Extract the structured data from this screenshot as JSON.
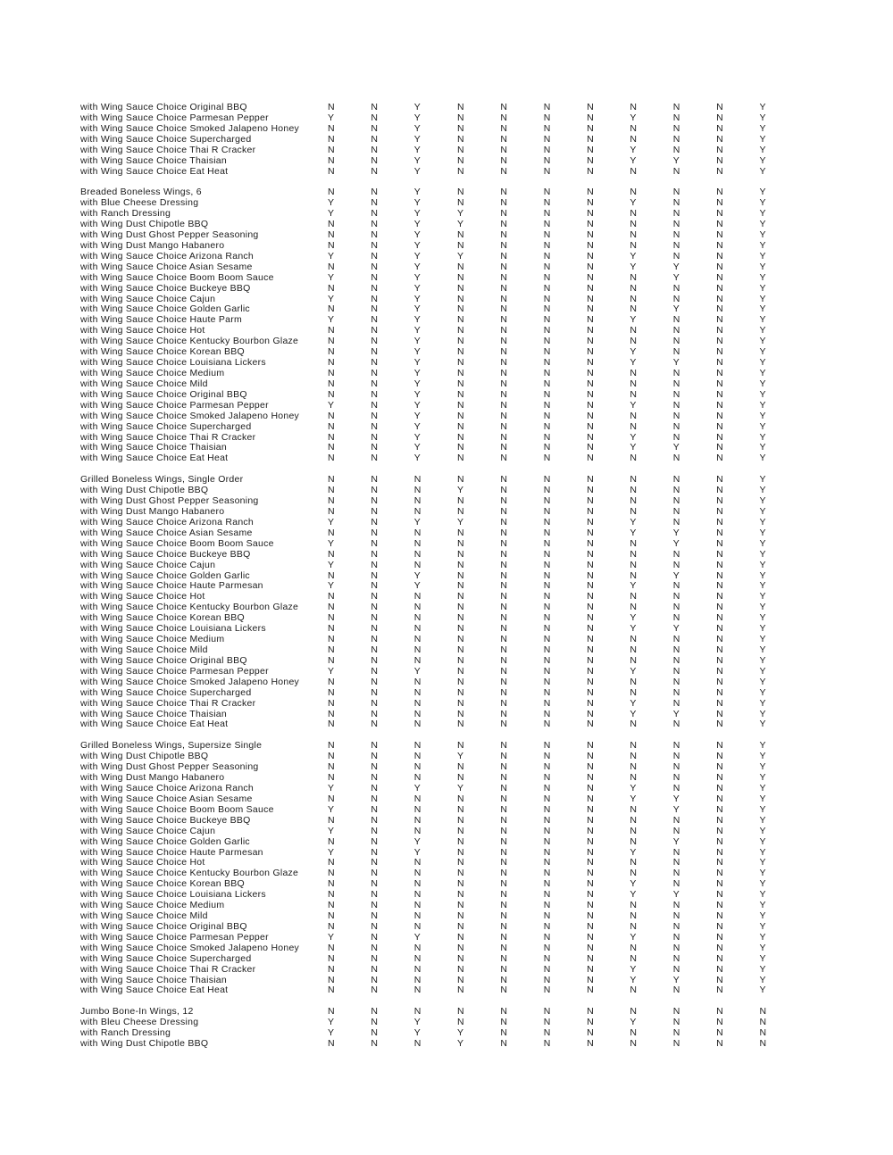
{
  "page": {
    "background": "#ffffff",
    "text_color": "#1c1c1c"
  },
  "table": {
    "columns": 11,
    "yes_value": "Y",
    "no_value": "N",
    "sections": [
      {
        "rows": [
          {
            "label": "with Wing Sauce Choice Original BBQ",
            "values": "NNYNNNNNNNY"
          },
          {
            "label": "with Wing Sauce Choice Parmesan Pepper",
            "values": "YNYNNNNYNNY"
          },
          {
            "label": "with Wing Sauce Choice Smoked Jalapeno Honey",
            "values": "NNYNNNNNNNY"
          },
          {
            "label": "with Wing Sauce Choice Supercharged",
            "values": "NNYNNNNNNNY"
          },
          {
            "label": "with Wing Sauce Choice Thai R Cracker",
            "values": "NNYNNNNYNNY"
          },
          {
            "label": "with Wing Sauce Choice Thaisian",
            "values": "NNYNNNNYYNY"
          },
          {
            "label": "with Wing Sauce Choice Eat Heat",
            "values": "NNYNNNNNNNY"
          }
        ]
      },
      {
        "rows": [
          {
            "label": "Breaded Boneless Wings, 6",
            "values": "NNYNNNNNNNY"
          },
          {
            "label": "with Blue Cheese Dressing",
            "values": "YNYNNNNYNNY"
          },
          {
            "label": "with Ranch Dressing",
            "values": "YNYYNNNNNNY"
          },
          {
            "label": "with Wing Dust Chipotle BBQ",
            "values": "NNYYNNNNNNY"
          },
          {
            "label": "with Wing Dust Ghost Pepper Seasoning",
            "values": "NNYNNNNNNNY"
          },
          {
            "label": "with Wing Dust Mango Habanero",
            "values": "NNYNNNNNNNY"
          },
          {
            "label": "with Wing Sauce Choice Arizona Ranch",
            "values": "YNYYNNNYNNY"
          },
          {
            "label": "with Wing Sauce Choice Asian Sesame",
            "values": "NNYNNNNYYNY"
          },
          {
            "label": "with Wing Sauce Choice Boom Boom Sauce",
            "values": "YNYNNNNNYNY"
          },
          {
            "label": "with Wing Sauce Choice Buckeye BBQ",
            "values": "NNYNNNNNNNY"
          },
          {
            "label": "with Wing Sauce Choice Cajun",
            "values": "YNYNNNNNNNY"
          },
          {
            "label": "with Wing Sauce Choice Golden Garlic",
            "values": "NNYNNNNNYNY"
          },
          {
            "label": "with Wing Sauce Choice Haute Parm",
            "values": "YNYNNNNYNNY"
          },
          {
            "label": "with Wing Sauce Choice Hot",
            "values": "NNYNNNNNNNY"
          },
          {
            "label": "with Wing Sauce Choice Kentucky Bourbon Glaze",
            "values": "NNYNNNNNNNY"
          },
          {
            "label": "with Wing Sauce Choice Korean BBQ",
            "values": "NNYNNNNYNNY"
          },
          {
            "label": "with Wing Sauce Choice Louisiana Lickers",
            "values": "NNYNNNNYYNY"
          },
          {
            "label": "with Wing Sauce Choice Medium",
            "values": "NNYNNNNNNNY"
          },
          {
            "label": "with Wing Sauce Choice Mild",
            "values": "NNYNNNNNNNY"
          },
          {
            "label": "with Wing Sauce Choice Original BBQ",
            "values": "NNYNNNNNNNY"
          },
          {
            "label": "with Wing Sauce Choice Parmesan Pepper",
            "values": "YNYNNNNYNNY"
          },
          {
            "label": "with Wing Sauce Choice Smoked Jalapeno Honey",
            "values": "NNYNNNNNNNY"
          },
          {
            "label": "with Wing Sauce Choice Supercharged",
            "values": "NNYNNNNNNNY"
          },
          {
            "label": "with Wing Sauce Choice Thai R Cracker",
            "values": "NNYNNNNYNNY"
          },
          {
            "label": "with Wing Sauce Choice Thaisian",
            "values": "NNYNNNNYYNY"
          },
          {
            "label": "with Wing Sauce Choice Eat Heat",
            "values": "NNYNNNNNNNY"
          }
        ]
      },
      {
        "rows": [
          {
            "label": "Grilled Boneless Wings, Single Order",
            "values": "NNNNNNNNNNY"
          },
          {
            "label": "with Wing Dust Chipotle BBQ",
            "values": "NNNYNNNNNNY"
          },
          {
            "label": "with Wing Dust Ghost Pepper Seasoning",
            "values": "NNNNNNNNNNY"
          },
          {
            "label": "with Wing Dust Mango Habanero",
            "values": "NNNNNNNNNNY"
          },
          {
            "label": "with Wing Sauce Choice Arizona Ranch",
            "values": "YNYYNNNYNNY"
          },
          {
            "label": "with Wing Sauce Choice Asian Sesame",
            "values": "NNNNNNNYYNY"
          },
          {
            "label": "with Wing Sauce Choice Boom Boom Sauce",
            "values": "YNNNNNNNYNY"
          },
          {
            "label": "with Wing Sauce Choice Buckeye BBQ",
            "values": "NNNNNNNNNNY"
          },
          {
            "label": "with Wing Sauce Choice Cajun",
            "values": "YNNNNNNNNNY"
          },
          {
            "label": "with Wing Sauce Choice Golden Garlic",
            "values": "NNYNNNNNYNY"
          },
          {
            "label": "with Wing Sauce Choice Haute Parmesan",
            "values": "YNYNNNNYNNY"
          },
          {
            "label": "with Wing Sauce Choice Hot",
            "values": "NNNNNNNNNNY"
          },
          {
            "label": "with Wing Sauce Choice Kentucky Bourbon Glaze",
            "values": "NNNNNNNNNNY"
          },
          {
            "label": "with Wing Sauce Choice Korean BBQ",
            "values": "NNNNNNNYNNY"
          },
          {
            "label": "with Wing Sauce Choice Louisiana Lickers",
            "values": "NNNNNNNYYNY"
          },
          {
            "label": "with Wing Sauce Choice Medium",
            "values": "NNNNNNNNNNY"
          },
          {
            "label": "with Wing Sauce Choice Mild",
            "values": "NNNNNNNNNNY"
          },
          {
            "label": "with Wing Sauce Choice Original BBQ",
            "values": "NNNNNNNNNNY"
          },
          {
            "label": "with Wing Sauce Choice Parmesan Pepper",
            "values": "YNYNNNNYNNY"
          },
          {
            "label": "with Wing Sauce Choice Smoked Jalapeno Honey",
            "values": "NNNNNNNNNNY"
          },
          {
            "label": "with Wing Sauce Choice Supercharged",
            "values": "NNNNNNNNNNY"
          },
          {
            "label": "with Wing Sauce Choice Thai R Cracker",
            "values": "NNNNNNNYNNY"
          },
          {
            "label": "with Wing Sauce Choice Thaisian",
            "values": "NNNNNNNYYNY"
          },
          {
            "label": "with Wing Sauce Choice Eat Heat",
            "values": "NNNNNNNNNNY"
          }
        ]
      },
      {
        "rows": [
          {
            "label": "Grilled Boneless Wings, Supersize Single",
            "values": "NNNNNNNNNNY"
          },
          {
            "label": "with Wing Dust Chipotle BBQ",
            "values": "NNNYNNNNNNY"
          },
          {
            "label": "with Wing Dust Ghost Pepper Seasoning",
            "values": "NNNNNNNNNNY"
          },
          {
            "label": "with Wing Dust Mango Habanero",
            "values": "NNNNNNNNNNY"
          },
          {
            "label": "with Wing Sauce Choice Arizona Ranch",
            "values": "YNYYNNNYNNY"
          },
          {
            "label": "with Wing Sauce Choice Asian Sesame",
            "values": "NNNNNNNYYNY"
          },
          {
            "label": "with Wing Sauce Choice Boom Boom Sauce",
            "values": "YNNNNNNNYNY"
          },
          {
            "label": "with Wing Sauce Choice Buckeye BBQ",
            "values": "NNNNNNNNNNY"
          },
          {
            "label": "with Wing Sauce Choice Cajun",
            "values": "YNNNNNNNNNY"
          },
          {
            "label": "with Wing Sauce Choice Golden Garlic",
            "values": "NNYNNNNNYNY"
          },
          {
            "label": "with Wing Sauce Choice Haute Parmesan",
            "values": "YNYNNNNYNNY"
          },
          {
            "label": "with Wing Sauce Choice Hot",
            "values": "NNNNNNNNNNY"
          },
          {
            "label": "with Wing Sauce Choice Kentucky Bourbon Glaze",
            "values": "NNNNNNNNNNY"
          },
          {
            "label": "with Wing Sauce Choice Korean BBQ",
            "values": "NNNNNNNYNNY"
          },
          {
            "label": "with Wing Sauce Choice Louisiana Lickers",
            "values": "NNNNNNNYYNY"
          },
          {
            "label": "with Wing Sauce Choice Medium",
            "values": "NNNNNNNNNNY"
          },
          {
            "label": "with Wing Sauce Choice Mild",
            "values": "NNNNNNNNNNY"
          },
          {
            "label": "with Wing Sauce Choice Original BBQ",
            "values": "NNNNNNNNNNY"
          },
          {
            "label": "with Wing Sauce Choice Parmesan Pepper",
            "values": "YNYNNNNYNNY"
          },
          {
            "label": "with Wing Sauce Choice Smoked Jalapeno Honey",
            "values": "NNNNNNNNNNY"
          },
          {
            "label": "with Wing Sauce Choice Supercharged",
            "values": "NNNNNNNNNNY"
          },
          {
            "label": "with Wing Sauce Choice Thai R Cracker",
            "values": "NNNNNNNYNNY"
          },
          {
            "label": "with Wing Sauce Choice Thaisian",
            "values": "NNNNNNNYYNY"
          },
          {
            "label": "with Wing Sauce Choice Eat Heat",
            "values": "NNNNNNNNNNY"
          }
        ]
      },
      {
        "rows": [
          {
            "label": "Jumbo Bone-In Wings, 12",
            "values": "NNNNNNNNNNN"
          },
          {
            "label": "with Bleu Cheese Dressing",
            "values": "YNYNNNNYNNN"
          },
          {
            "label": "with Ranch Dressing",
            "values": "YNYYNNNNNNN"
          },
          {
            "label": "with Wing Dust Chipotle BBQ",
            "values": "NNNYNNNNNNN"
          }
        ]
      }
    ]
  }
}
